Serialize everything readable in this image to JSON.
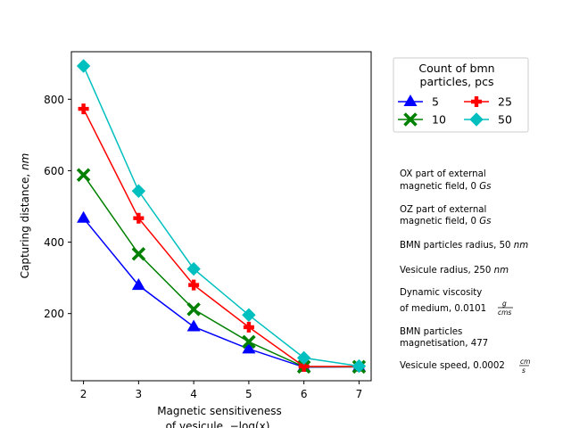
{
  "chart_data": {
    "type": "line",
    "title": "",
    "xlabel_line1": "Magnetic sensitiveness",
    "xlabel_line2": "of vesicule,  −log(x)",
    "ylabel": "Capturing distance,  nm",
    "x": [
      2,
      3,
      4,
      5,
      6,
      7
    ],
    "xlim": [
      1.78,
      7.22
    ],
    "ylim": [
      12,
      933
    ],
    "xticks": [
      "2",
      "3",
      "4",
      "5",
      "6",
      "7"
    ],
    "yticks": [
      "200",
      "400",
      "600",
      "800"
    ],
    "ytick_values": [
      200,
      400,
      600,
      800
    ],
    "grid": false,
    "legend": {
      "title_line1": "Count of bmn",
      "title_line2": "particles,   pcs",
      "placement": "outside-right-top",
      "columns": 2
    },
    "series": [
      {
        "name": "5",
        "color": "#0000ff",
        "marker": "triangle",
        "values": [
          467,
          279,
          163,
          101,
          50,
          51
        ]
      },
      {
        "name": "10",
        "color": "#008000",
        "marker": "x-thick",
        "values": [
          588,
          367,
          212,
          121,
          51,
          51
        ]
      },
      {
        "name": "25",
        "color": "#ff0000",
        "marker": "plus-thick",
        "values": [
          773,
          467,
          280,
          162,
          52,
          52
        ]
      },
      {
        "name": "50",
        "color": "#00bfbf",
        "marker": "diamond",
        "values": [
          893,
          543,
          325,
          196,
          76,
          53
        ]
      }
    ],
    "annotations": [
      {
        "line1": "OX part of external",
        "line2": "magnetic field, 0 Gs"
      },
      {
        "line1": "OZ part of external",
        "line2": "magnetic field, 0 Gs"
      },
      {
        "line1": "BMN particles radius, 50 nm",
        "line2": ""
      },
      {
        "line1": "Vesicule radius, 250 nm",
        "line2": ""
      },
      {
        "line1": "Dynamic viscosity",
        "line2": "of medium, 0.0101 g/cm·s"
      },
      {
        "line1": "BMN particles",
        "line2": "magnetisation, 477"
      },
      {
        "line1": "Vesicule speed, 0.0002 cm/s",
        "line2": ""
      }
    ]
  }
}
